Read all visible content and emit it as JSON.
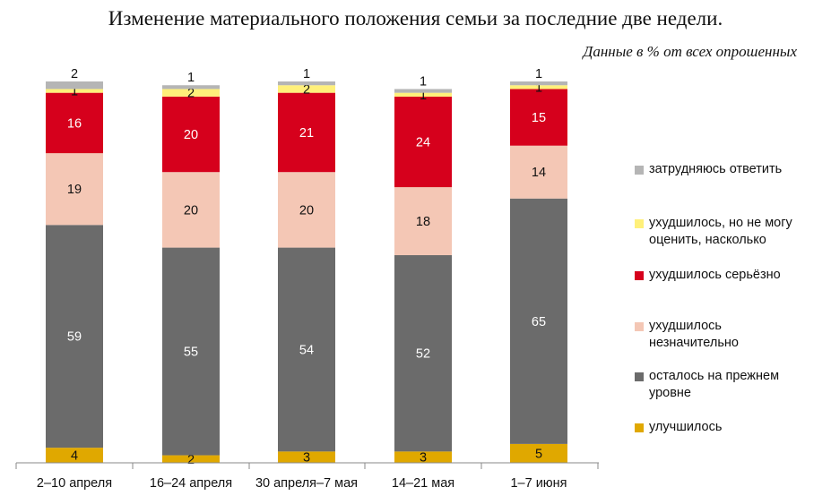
{
  "chart_data": {
    "type": "bar",
    "stacked": true,
    "title": "Изменение материального положения семьи за последние две недели.",
    "subtitle": "Данные в % от всех опрошенных",
    "categories": [
      "2–10 апреля",
      "16–24 апреля",
      "30 апреля–7 мая",
      "14–21 мая",
      "1–7 июня"
    ],
    "series": [
      {
        "name": "улучшилось",
        "color": "#e0a800",
        "label_color": "#111111",
        "values": [
          4,
          2,
          3,
          3,
          5
        ]
      },
      {
        "name": "осталось на прежнем уровне",
        "color": "#6b6b6b",
        "label_color": "#ffffff",
        "values": [
          59,
          55,
          54,
          52,
          65
        ]
      },
      {
        "name": "ухудшилось незначительно",
        "color": "#f4c7b5",
        "label_color": "#111111",
        "values": [
          19,
          20,
          20,
          18,
          14
        ]
      },
      {
        "name": "ухудшилось серьёзно",
        "color": "#d6001c",
        "label_color": "#ffffff",
        "values": [
          16,
          20,
          21,
          24,
          15
        ]
      },
      {
        "name": "ухудшилось, но не могу оценить, насколько",
        "color": "#fff07a",
        "label_color": "#111111",
        "values": [
          1,
          2,
          2,
          1,
          1
        ]
      },
      {
        "name": "затрудняюсь ответить",
        "color": "#b5b5b5",
        "label_color": "#111111",
        "values": [
          2,
          1,
          1,
          1,
          1
        ]
      }
    ],
    "legend_order": [
      5,
      4,
      3,
      2,
      1,
      0
    ],
    "legend_labels": [
      "затрудняюсь ответить",
      "ухудшилось, но не могу\nоценить, насколько",
      "ухудшилось серьёзно",
      "ухудшилось\nнезначительно",
      "осталось на прежнем\nуровне",
      "улучшилось"
    ],
    "ylim": [
      0,
      101
    ],
    "grid": false,
    "legend_position": "right"
  }
}
